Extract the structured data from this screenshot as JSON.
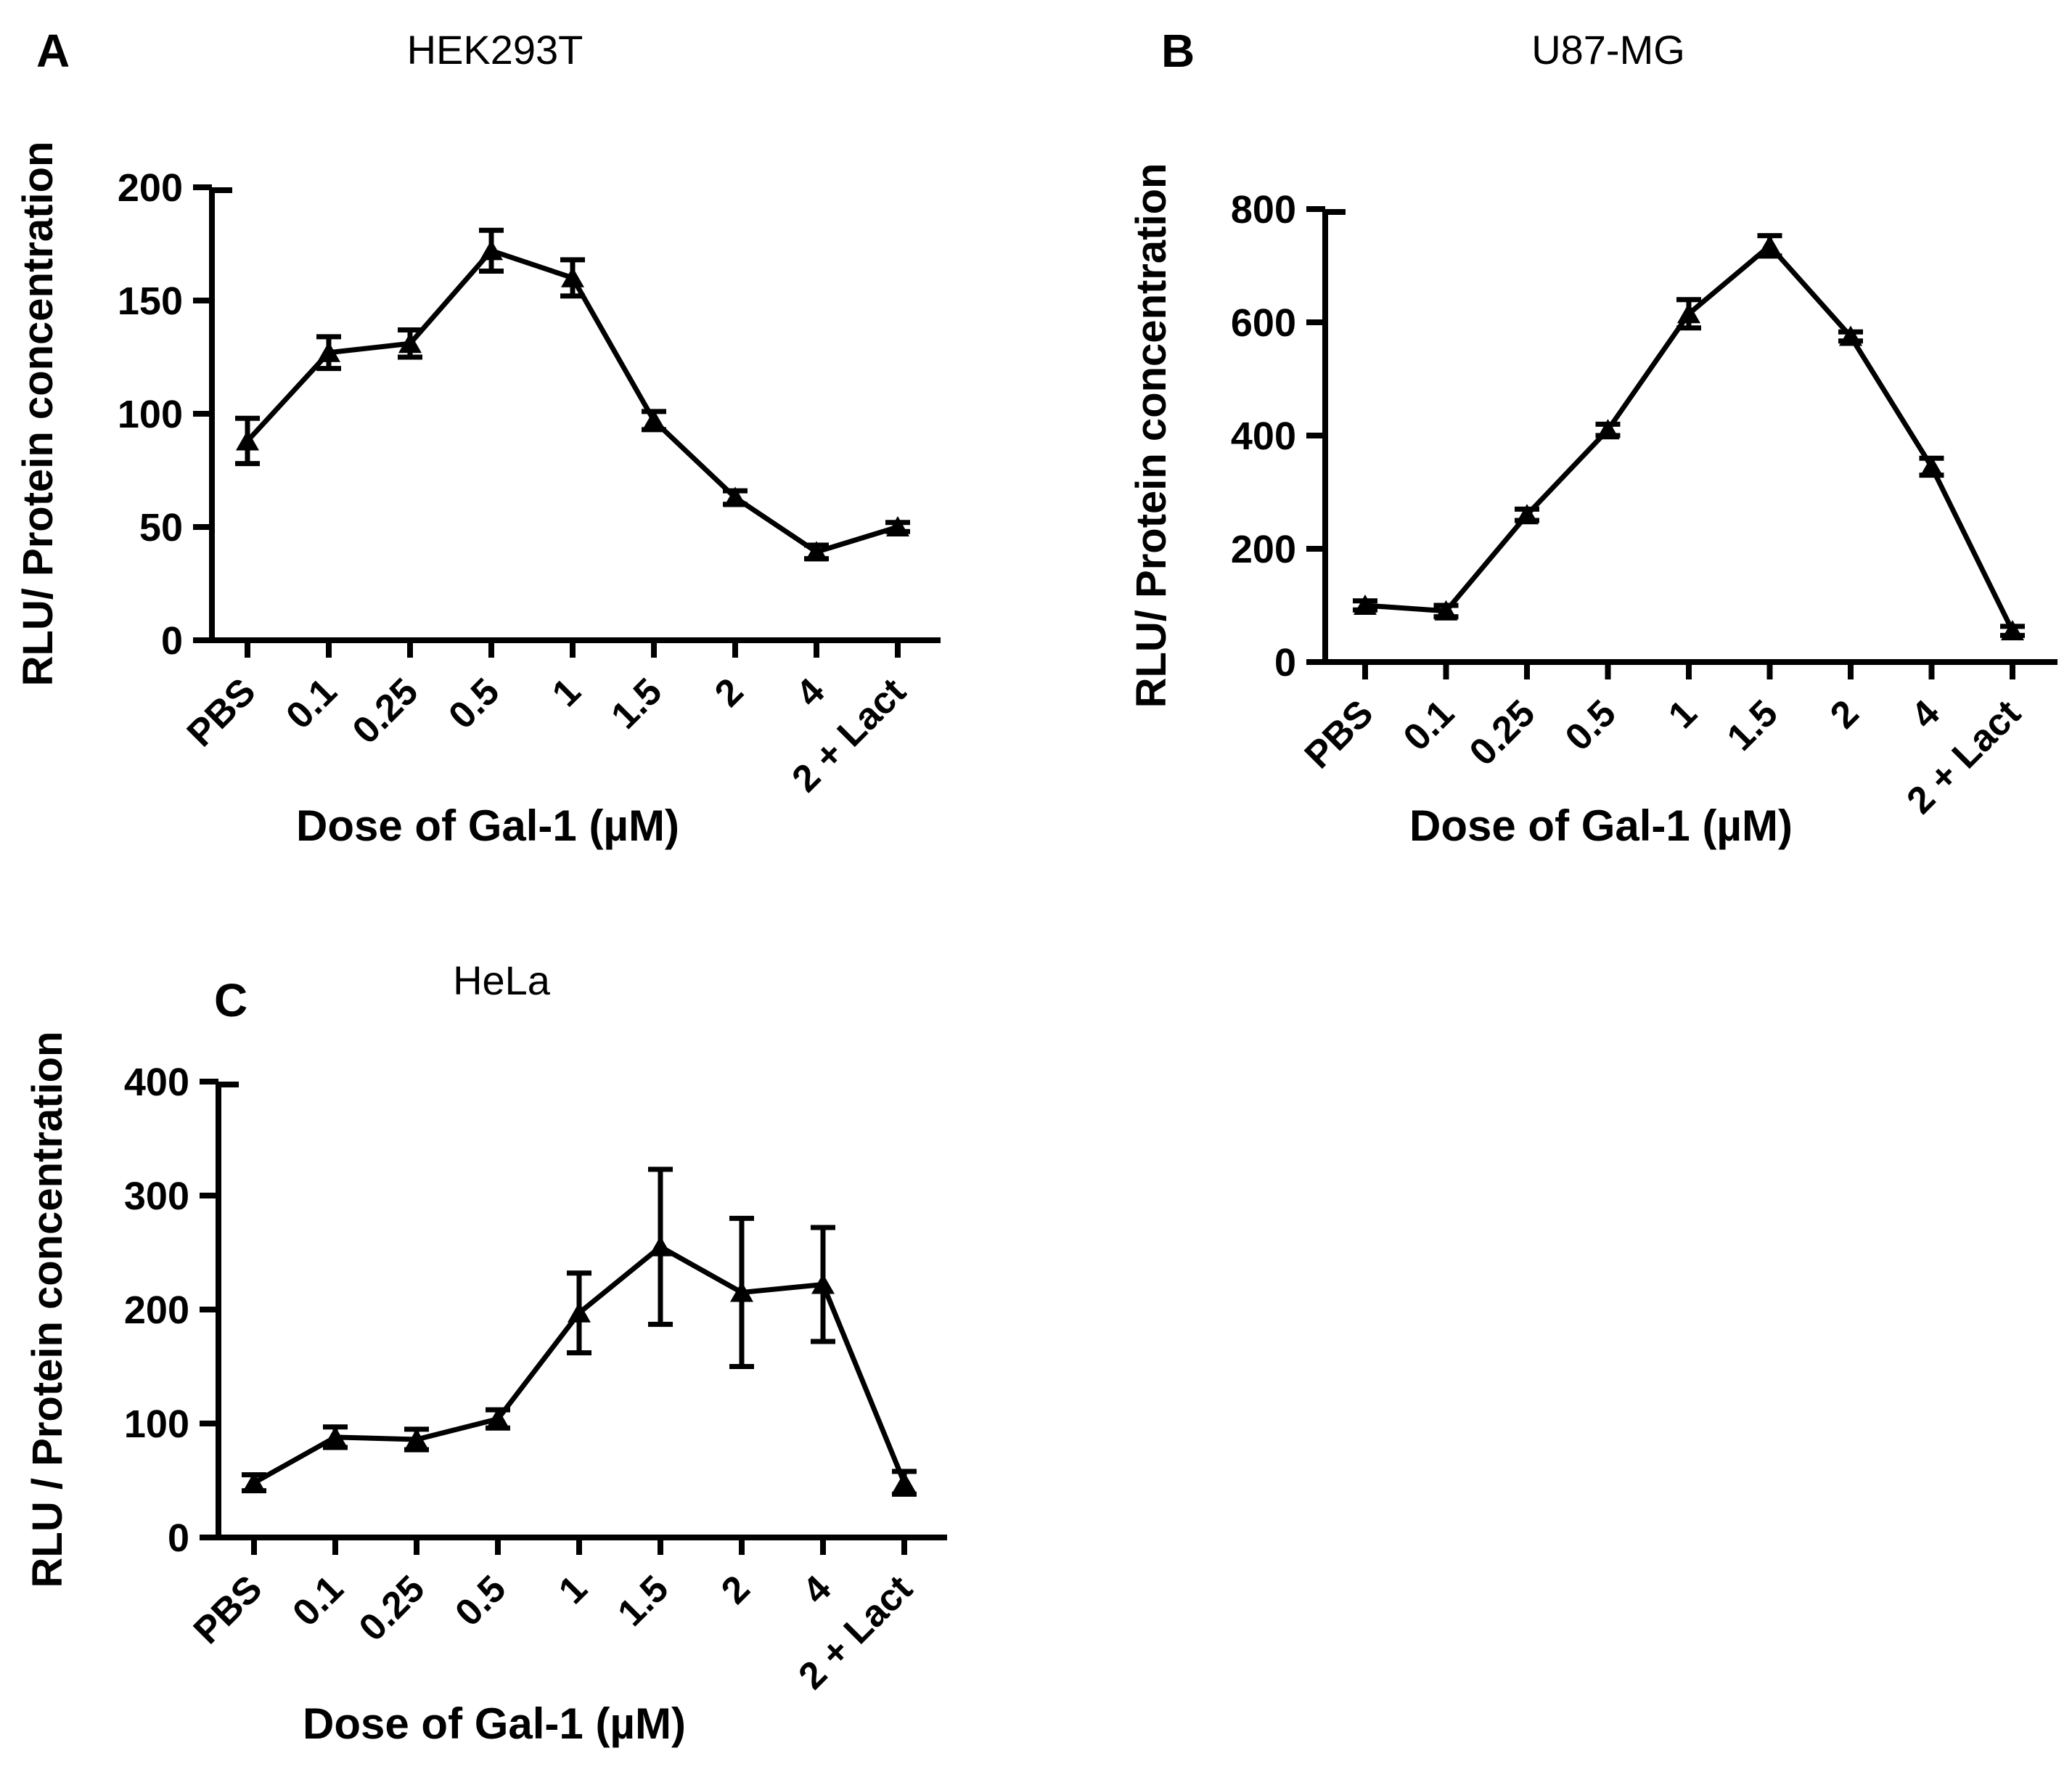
{
  "figure": {
    "background": "#ffffff",
    "ink": "#000000"
  },
  "chart_data": [
    {
      "type": "line",
      "panel_label": "A",
      "title": "HEK293T",
      "xlabel": "Dose of Gal-1 (µM)",
      "ylabel": "RLU/ Protein concentration",
      "categories": [
        "PBS",
        "0.1",
        "0.25",
        "0.5",
        "1",
        "1.5",
        "2",
        "4",
        "2 + Lact"
      ],
      "series": [
        {
          "name": "HEK293T",
          "values": [
            88,
            127,
            131,
            172,
            160,
            97,
            63,
            39,
            50
          ],
          "errors": [
            10,
            7,
            6,
            9,
            8,
            4,
            3,
            3,
            2
          ]
        }
      ],
      "ylim": [
        0,
        200
      ],
      "yticks": [
        0,
        50,
        100,
        150,
        200
      ],
      "grid": false,
      "legend": "none",
      "marker": "filled-triangle",
      "line_color": "#000000",
      "error_bars": "vertical-with-caps",
      "x_tick_label_rotation_deg": 45
    },
    {
      "type": "line",
      "panel_label": "B",
      "title": "U87-MG",
      "xlabel": "Dose of Gal-1 (µM)",
      "ylabel": "RLU/ Protein concentration",
      "categories": [
        "PBS",
        "0.1",
        "0.25",
        "0.5",
        "1",
        "1.5",
        "2",
        "4",
        "2 + Lact"
      ],
      "series": [
        {
          "name": "U87-MG",
          "values": [
            100,
            90,
            260,
            410,
            615,
            735,
            575,
            345,
            55
          ],
          "errors": [
            8,
            10,
            10,
            10,
            25,
            18,
            8,
            15,
            8
          ]
        }
      ],
      "ylim": [
        0,
        800
      ],
      "yticks": [
        0,
        200,
        400,
        600,
        800
      ],
      "grid": false,
      "legend": "none",
      "marker": "filled-triangle",
      "line_color": "#000000",
      "error_bars": "vertical-with-caps",
      "x_tick_label_rotation_deg": 45
    },
    {
      "type": "line",
      "panel_label": "C",
      "title": "HeLa",
      "xlabel": "Dose of Gal-1 (µM)",
      "ylabel": "RLU / Protein concentration",
      "categories": [
        "PBS",
        "0.1",
        "0.25",
        "0.5",
        "1",
        "1.5",
        "2",
        "4",
        "2 + Lact"
      ],
      "series": [
        {
          "name": "HeLa",
          "values": [
            48,
            88,
            86,
            104,
            197,
            255,
            215,
            222,
            48
          ],
          "errors": [
            7,
            9,
            9,
            8,
            35,
            68,
            65,
            50,
            10
          ]
        }
      ],
      "ylim": [
        0,
        400
      ],
      "yticks": [
        0,
        100,
        200,
        300,
        400
      ],
      "grid": false,
      "legend": "none",
      "marker": "filled-triangle",
      "line_color": "#000000",
      "error_bars": "vertical-with-caps",
      "x_tick_label_rotation_deg": 45
    }
  ]
}
